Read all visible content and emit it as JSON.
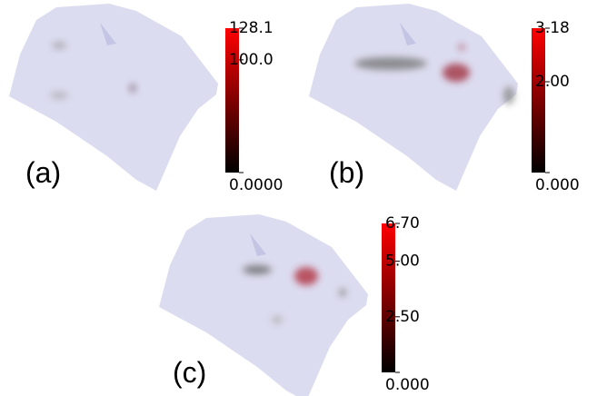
{
  "panels": [
    {
      "label": "(a)",
      "colorbar": {
        "ticks": [
          {
            "value": 0,
            "label": "0.0000"
          },
          {
            "value": 100,
            "label": "100.0"
          },
          {
            "value": 128.1,
            "label": "128.1"
          }
        ]
      }
    },
    {
      "label": "(b)",
      "colorbar": {
        "ticks": [
          {
            "value": 0,
            "label": "0.000"
          },
          {
            "value": 2,
            "label": "2.00"
          },
          {
            "value": 3.18,
            "label": "3.18"
          }
        ]
      }
    },
    {
      "label": "(c)",
      "colorbar": {
        "ticks": [
          {
            "value": 0,
            "label": "0.000"
          },
          {
            "value": 2.5,
            "label": "2.50"
          },
          {
            "value": 5,
            "label": "5.00"
          },
          {
            "value": 6.7,
            "label": "6.70"
          }
        ]
      }
    }
  ]
}
